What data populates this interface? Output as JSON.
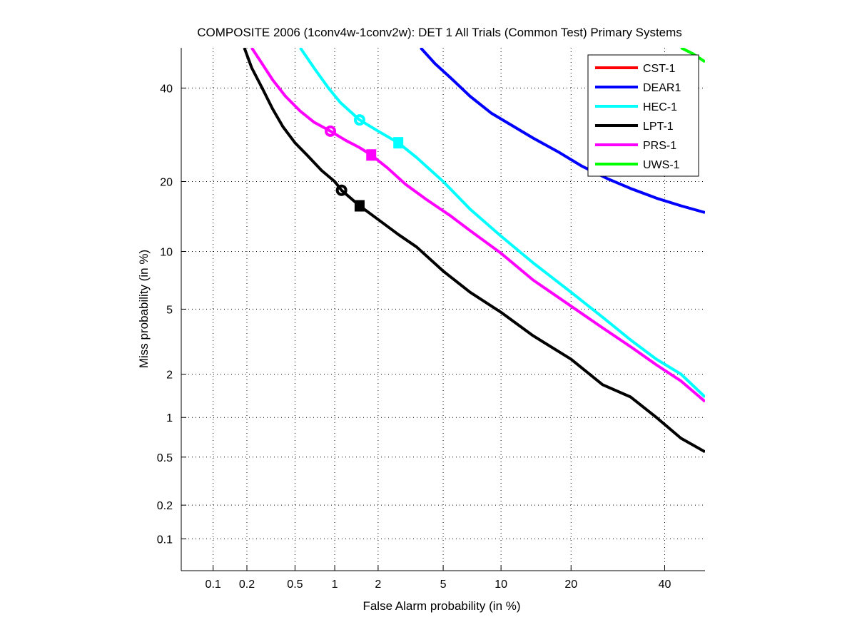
{
  "chart_data": {
    "type": "line",
    "title": "COMPOSITE 2006 (1conv4w-1conv2w): DET 1 All Trials (Common Test) Primary Systems",
    "xlabel": "False Alarm probability (in %)",
    "ylabel": "Miss probability (in %)",
    "xscale": "normal-deviate",
    "yscale": "normal-deviate",
    "xlim": [
      0.05,
      50
    ],
    "ylim": [
      0.05,
      50
    ],
    "xticks": [
      0.1,
      0.2,
      0.5,
      1,
      2,
      5,
      10,
      20,
      40
    ],
    "xtick_labels": [
      "0.1",
      "0.2",
      "0.5",
      "1",
      "2",
      "5",
      "10",
      "20",
      "40"
    ],
    "yticks": [
      0.1,
      0.2,
      0.5,
      1,
      2,
      5,
      10,
      20,
      40
    ],
    "ytick_labels": [
      "0.1",
      "0.2",
      "0.5",
      "1",
      "2",
      "5",
      "10",
      "20",
      "40"
    ],
    "grid": true,
    "legend_position": "top-right",
    "series": [
      {
        "name": "CST-1",
        "color": "#ff0000",
        "x": [],
        "y": [],
        "markers": []
      },
      {
        "name": "DEAR1",
        "color": "#0000ff",
        "x": [
          3.7,
          4.5,
          5.5,
          7.0,
          9.0,
          11.5,
          14.0,
          18.0,
          22.0,
          27.0,
          32.0,
          38.0,
          44.0,
          50.0
        ],
        "y": [
          50.0,
          46.0,
          42.5,
          38.0,
          34.0,
          31.0,
          28.5,
          25.5,
          22.8,
          20.5,
          18.8,
          17.2,
          16.0,
          15.0
        ],
        "markers": []
      },
      {
        "name": "HEC-1",
        "color": "#00ffff",
        "x": [
          0.55,
          0.7,
          0.9,
          1.1,
          1.5,
          2.0,
          2.7,
          3.5,
          5.0,
          7.0,
          10.0,
          14.0,
          20.0,
          26.0,
          32.0,
          38.0,
          44.0,
          50.0
        ],
        "y": [
          50.0,
          45.0,
          40.0,
          36.5,
          32.5,
          30.0,
          27.5,
          24.5,
          20.0,
          15.5,
          11.8,
          8.8,
          6.2,
          4.5,
          3.3,
          2.5,
          2.0,
          1.4
        ],
        "markers": [
          {
            "shape": "circle",
            "x": 1.5,
            "y": 32.5
          },
          {
            "shape": "square",
            "x": 2.7,
            "y": 27.5
          }
        ]
      },
      {
        "name": "LPT-1",
        "color": "#000000",
        "x": [
          0.19,
          0.22,
          0.27,
          0.33,
          0.4,
          0.5,
          0.62,
          0.8,
          1.0,
          1.12,
          1.5,
          2.0,
          2.7,
          3.5,
          5.0,
          7.0,
          10.0,
          14.0,
          20.0,
          26.0,
          32.0,
          38.0,
          44.0,
          50.0
        ],
        "y": [
          50.0,
          45.0,
          40.0,
          35.0,
          31.0,
          27.5,
          25.0,
          22.0,
          20.0,
          18.5,
          16.0,
          14.0,
          12.0,
          10.5,
          8.0,
          6.2,
          4.8,
          3.5,
          2.5,
          1.7,
          1.4,
          1.0,
          0.7,
          0.55
        ],
        "markers": [
          {
            "shape": "circle",
            "x": 1.12,
            "y": 18.5
          },
          {
            "shape": "square",
            "x": 1.5,
            "y": 16.0
          }
        ]
      },
      {
        "name": "PRS-1",
        "color": "#ff00ff",
        "x": [
          0.22,
          0.27,
          0.33,
          0.42,
          0.55,
          0.7,
          0.93,
          1.2,
          1.5,
          1.8,
          2.3,
          3.0,
          4.0,
          5.5,
          7.0,
          10.0,
          14.0,
          20.0,
          26.0,
          32.0,
          38.0,
          44.0,
          50.0
        ],
        "y": [
          50.0,
          46.0,
          42.0,
          38.0,
          34.5,
          32.0,
          30.0,
          28.0,
          26.5,
          25.0,
          22.5,
          19.5,
          17.0,
          14.5,
          12.5,
          9.8,
          7.2,
          5.2,
          3.9,
          3.0,
          2.3,
          1.8,
          1.3
        ],
        "markers": [
          {
            "shape": "circle",
            "x": 0.93,
            "y": 30.0
          },
          {
            "shape": "square",
            "x": 1.8,
            "y": 25.0
          }
        ]
      },
      {
        "name": "UWS-1",
        "color": "#00ff00",
        "x": [
          44.0,
          47.0,
          50.0
        ],
        "y": [
          50.0,
          48.5,
          46.5
        ],
        "markers": []
      }
    ]
  }
}
